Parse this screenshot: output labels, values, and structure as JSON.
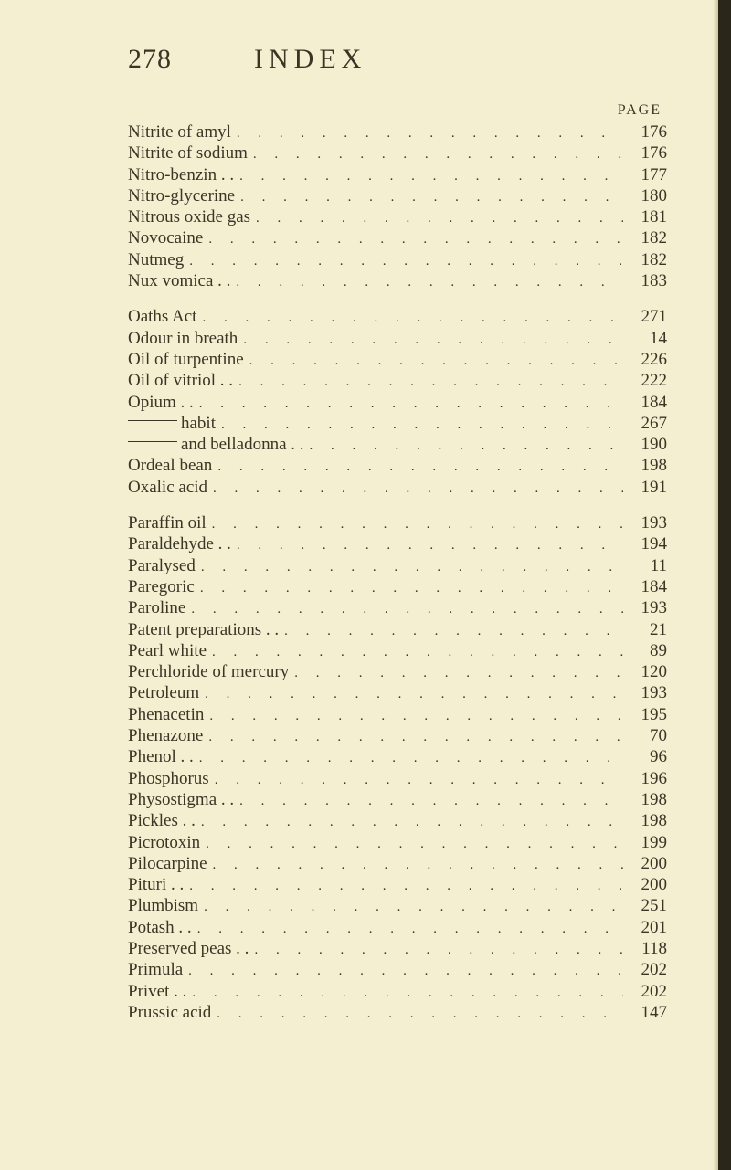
{
  "page_number": "278",
  "title": "INDEX",
  "page_label": "PAGE",
  "sections": [
    [
      {
        "term": "Nitrite of amyl",
        "page": "176"
      },
      {
        "term": "Nitrite of sodium",
        "page": "176"
      },
      {
        "term": "Nitro-benzin  . .",
        "page": "177"
      },
      {
        "term": "Nitro-glycerine",
        "page": "180"
      },
      {
        "term": "Nitrous oxide gas",
        "page": "181"
      },
      {
        "term": "Novocaine",
        "page": "182"
      },
      {
        "term": "Nutmeg",
        "page": "182"
      },
      {
        "term": "Nux vomica  . .",
        "page": "183"
      }
    ],
    [
      {
        "term": "Oaths Act",
        "page": "271"
      },
      {
        "term": "Odour in breath",
        "page": "14"
      },
      {
        "term": "Oil of turpentine",
        "page": "226"
      },
      {
        "term": "Oil of vitriol  . .",
        "page": "222"
      },
      {
        "term": "Opium  . .",
        "page": "184"
      },
      {
        "term": "—— habit",
        "page": "267",
        "dash": true
      },
      {
        "term": "—— and belladonna  . .",
        "page": "190",
        "dash": true
      },
      {
        "term": "Ordeal bean",
        "page": "198"
      },
      {
        "term": "Oxalic acid",
        "page": "191"
      }
    ],
    [
      {
        "term": "Paraffin oil",
        "page": "193"
      },
      {
        "term": "Paraldehyde  . .",
        "page": "194"
      },
      {
        "term": "Paralysed",
        "page": "11"
      },
      {
        "term": "Paregoric",
        "page": "184"
      },
      {
        "term": "Paroline",
        "page": "193"
      },
      {
        "term": "Patent preparations  . .",
        "page": "21"
      },
      {
        "term": "Pearl white",
        "page": "89"
      },
      {
        "term": "Perchloride of mercury",
        "page": "120"
      },
      {
        "term": "Petroleum",
        "page": "193"
      },
      {
        "term": "Phenacetin",
        "page": "195"
      },
      {
        "term": "Phenazone",
        "page": "70"
      },
      {
        "term": "Phenol  . .",
        "page": "96"
      },
      {
        "term": "Phosphorus",
        "page": "196"
      },
      {
        "term": "Physostigma  . .",
        "page": "198"
      },
      {
        "term": "Pickles  . .",
        "page": "198"
      },
      {
        "term": "Picrotoxin",
        "page": "199"
      },
      {
        "term": "Pilocarpine",
        "page": "200"
      },
      {
        "term": "Pituri  . .",
        "page": "200"
      },
      {
        "term": "Plumbism",
        "page": "251"
      },
      {
        "term": "Potash  . .",
        "page": "201"
      },
      {
        "term": "Preserved peas . .",
        "page": "118"
      },
      {
        "term": "Primula",
        "page": "202"
      },
      {
        "term": "Privet  . .",
        "page": "202"
      },
      {
        "term": "Prussic acid",
        "page": "147"
      }
    ]
  ]
}
